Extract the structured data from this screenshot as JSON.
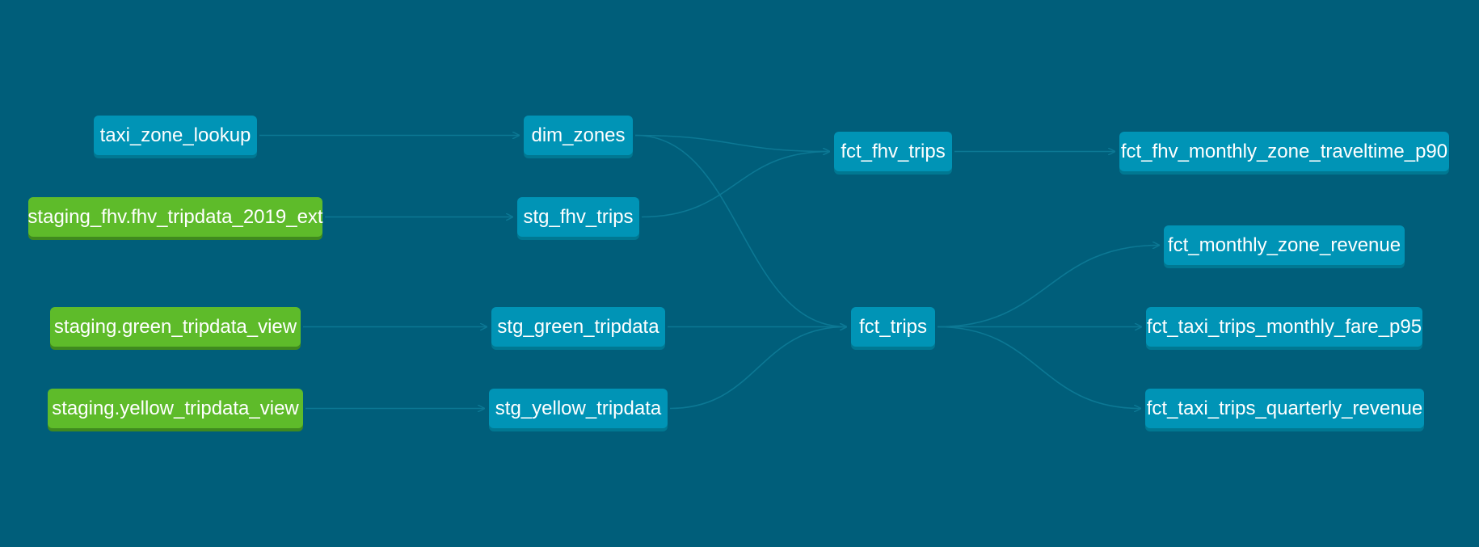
{
  "colors": {
    "background": "#005e7a",
    "model_node": "#0094b6",
    "source_node": "#5ebb2a",
    "edge": "#0c7894"
  },
  "nodes": {
    "taxi_zone_lookup": {
      "label": "taxi_zone_lookup",
      "kind": "model"
    },
    "staging_fhv_ext": {
      "label": "staging_fhv.fhv_tripdata_2019_ext",
      "kind": "source"
    },
    "staging_green_view": {
      "label": "staging.green_tripdata_view",
      "kind": "source"
    },
    "staging_yellow_view": {
      "label": "staging.yellow_tripdata_view",
      "kind": "source"
    },
    "dim_zones": {
      "label": "dim_zones",
      "kind": "model"
    },
    "stg_fhv_trips": {
      "label": "stg_fhv_trips",
      "kind": "model"
    },
    "stg_green_tripdata": {
      "label": "stg_green_tripdata",
      "kind": "model"
    },
    "stg_yellow_tripdata": {
      "label": "stg_yellow_tripdata",
      "kind": "model"
    },
    "fct_fhv_trips": {
      "label": "fct_fhv_trips",
      "kind": "model"
    },
    "fct_trips": {
      "label": "fct_trips",
      "kind": "model"
    },
    "fct_fhv_monthly_zone_traveltime_p90": {
      "label": "fct_fhv_monthly_zone_traveltime_p90",
      "kind": "model"
    },
    "fct_monthly_zone_revenue": {
      "label": "fct_monthly_zone_revenue",
      "kind": "model"
    },
    "fct_taxi_trips_monthly_fare_p95": {
      "label": "fct_taxi_trips_monthly_fare_p95",
      "kind": "model"
    },
    "fct_taxi_trips_quarterly_revenue": {
      "label": "fct_taxi_trips_quarterly_revenue",
      "kind": "model"
    }
  },
  "edges": [
    {
      "from": "taxi_zone_lookup",
      "to": "dim_zones"
    },
    {
      "from": "staging_fhv_ext",
      "to": "stg_fhv_trips"
    },
    {
      "from": "staging_green_view",
      "to": "stg_green_tripdata"
    },
    {
      "from": "staging_yellow_view",
      "to": "stg_yellow_tripdata"
    },
    {
      "from": "dim_zones",
      "to": "fct_fhv_trips"
    },
    {
      "from": "dim_zones",
      "to": "fct_trips"
    },
    {
      "from": "stg_fhv_trips",
      "to": "fct_fhv_trips"
    },
    {
      "from": "stg_green_tripdata",
      "to": "fct_trips"
    },
    {
      "from": "stg_yellow_tripdata",
      "to": "fct_trips"
    },
    {
      "from": "fct_fhv_trips",
      "to": "fct_fhv_monthly_zone_traveltime_p90"
    },
    {
      "from": "fct_trips",
      "to": "fct_monthly_zone_revenue"
    },
    {
      "from": "fct_trips",
      "to": "fct_taxi_trips_monthly_fare_p95"
    },
    {
      "from": "fct_trips",
      "to": "fct_taxi_trips_quarterly_revenue"
    }
  ]
}
